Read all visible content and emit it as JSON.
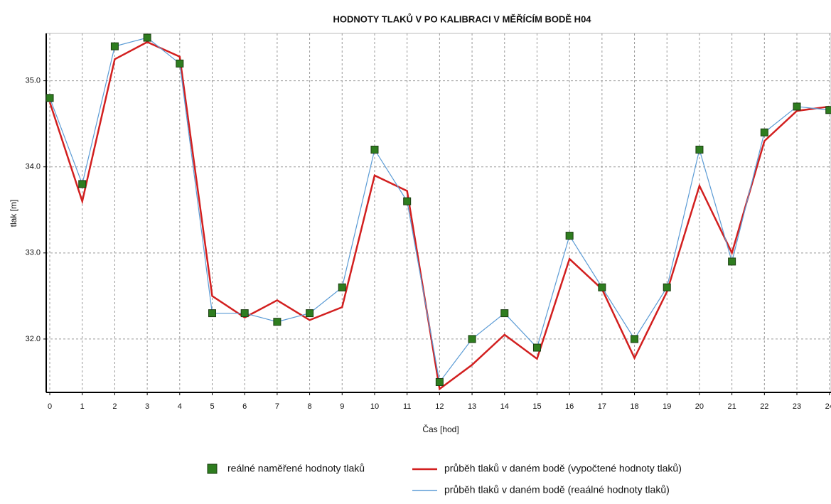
{
  "chart_data": {
    "type": "line",
    "title": "HODNOTY TLAKŮ V PO KALIBRACI V MĚŘÍCÍM BODĚ H04",
    "x_label": "Čas [hod]",
    "y_label": "tlak [m]",
    "x": [
      0,
      1,
      2,
      3,
      4,
      5,
      6,
      7,
      8,
      9,
      10,
      11,
      12,
      13,
      14,
      15,
      16,
      17,
      18,
      19,
      20,
      21,
      22,
      23,
      24
    ],
    "series": [
      {
        "name": "reálné naměřené hodnoty tlaků",
        "style": "markers",
        "color": "#2e7d1f",
        "values": [
          34.8,
          33.8,
          35.4,
          35.5,
          35.2,
          32.3,
          32.3,
          32.2,
          32.3,
          32.6,
          34.2,
          33.6,
          31.5,
          32.0,
          32.3,
          31.9,
          33.2,
          32.6,
          32.0,
          32.6,
          34.2,
          32.9,
          34.4,
          34.7,
          34.66
        ]
      },
      {
        "name": "průběh tlaků v daném bodě (vypočtené hodnoty tlaků)",
        "style": "line",
        "color": "#d21f1f",
        "values": [
          34.75,
          33.6,
          35.25,
          35.45,
          35.28,
          32.5,
          32.25,
          32.45,
          32.22,
          32.37,
          33.9,
          33.72,
          31.42,
          31.7,
          32.05,
          31.77,
          32.93,
          32.58,
          31.78,
          32.55,
          33.78,
          33.0,
          34.3,
          34.65,
          34.7
        ]
      },
      {
        "name": "průběh tlaků v daném bodě (reaálné hodnoty tlaků)",
        "style": "line",
        "color": "#5b9bd5",
        "values": [
          34.8,
          33.8,
          35.4,
          35.5,
          35.2,
          32.3,
          32.3,
          32.2,
          32.3,
          32.6,
          34.2,
          33.6,
          31.5,
          32.0,
          32.3,
          31.9,
          33.2,
          32.6,
          32.0,
          32.6,
          34.2,
          32.9,
          34.4,
          34.7,
          34.66
        ]
      }
    ],
    "xlim": [
      -0.11,
      24.05
    ],
    "xticks": [
      0,
      1,
      2,
      3,
      4,
      5,
      6,
      7,
      8,
      9,
      10,
      11,
      12,
      13,
      14,
      15,
      16,
      17,
      18,
      19,
      20,
      21,
      22,
      23,
      24
    ],
    "ylim": [
      31.38,
      35.55
    ],
    "yticks": [
      {
        "value": 32,
        "label": "32.0"
      },
      {
        "value": 33,
        "label": "33.0"
      },
      {
        "value": 34,
        "label": "34.0"
      },
      {
        "value": 35,
        "label": "35.0"
      }
    ],
    "grid": true
  }
}
